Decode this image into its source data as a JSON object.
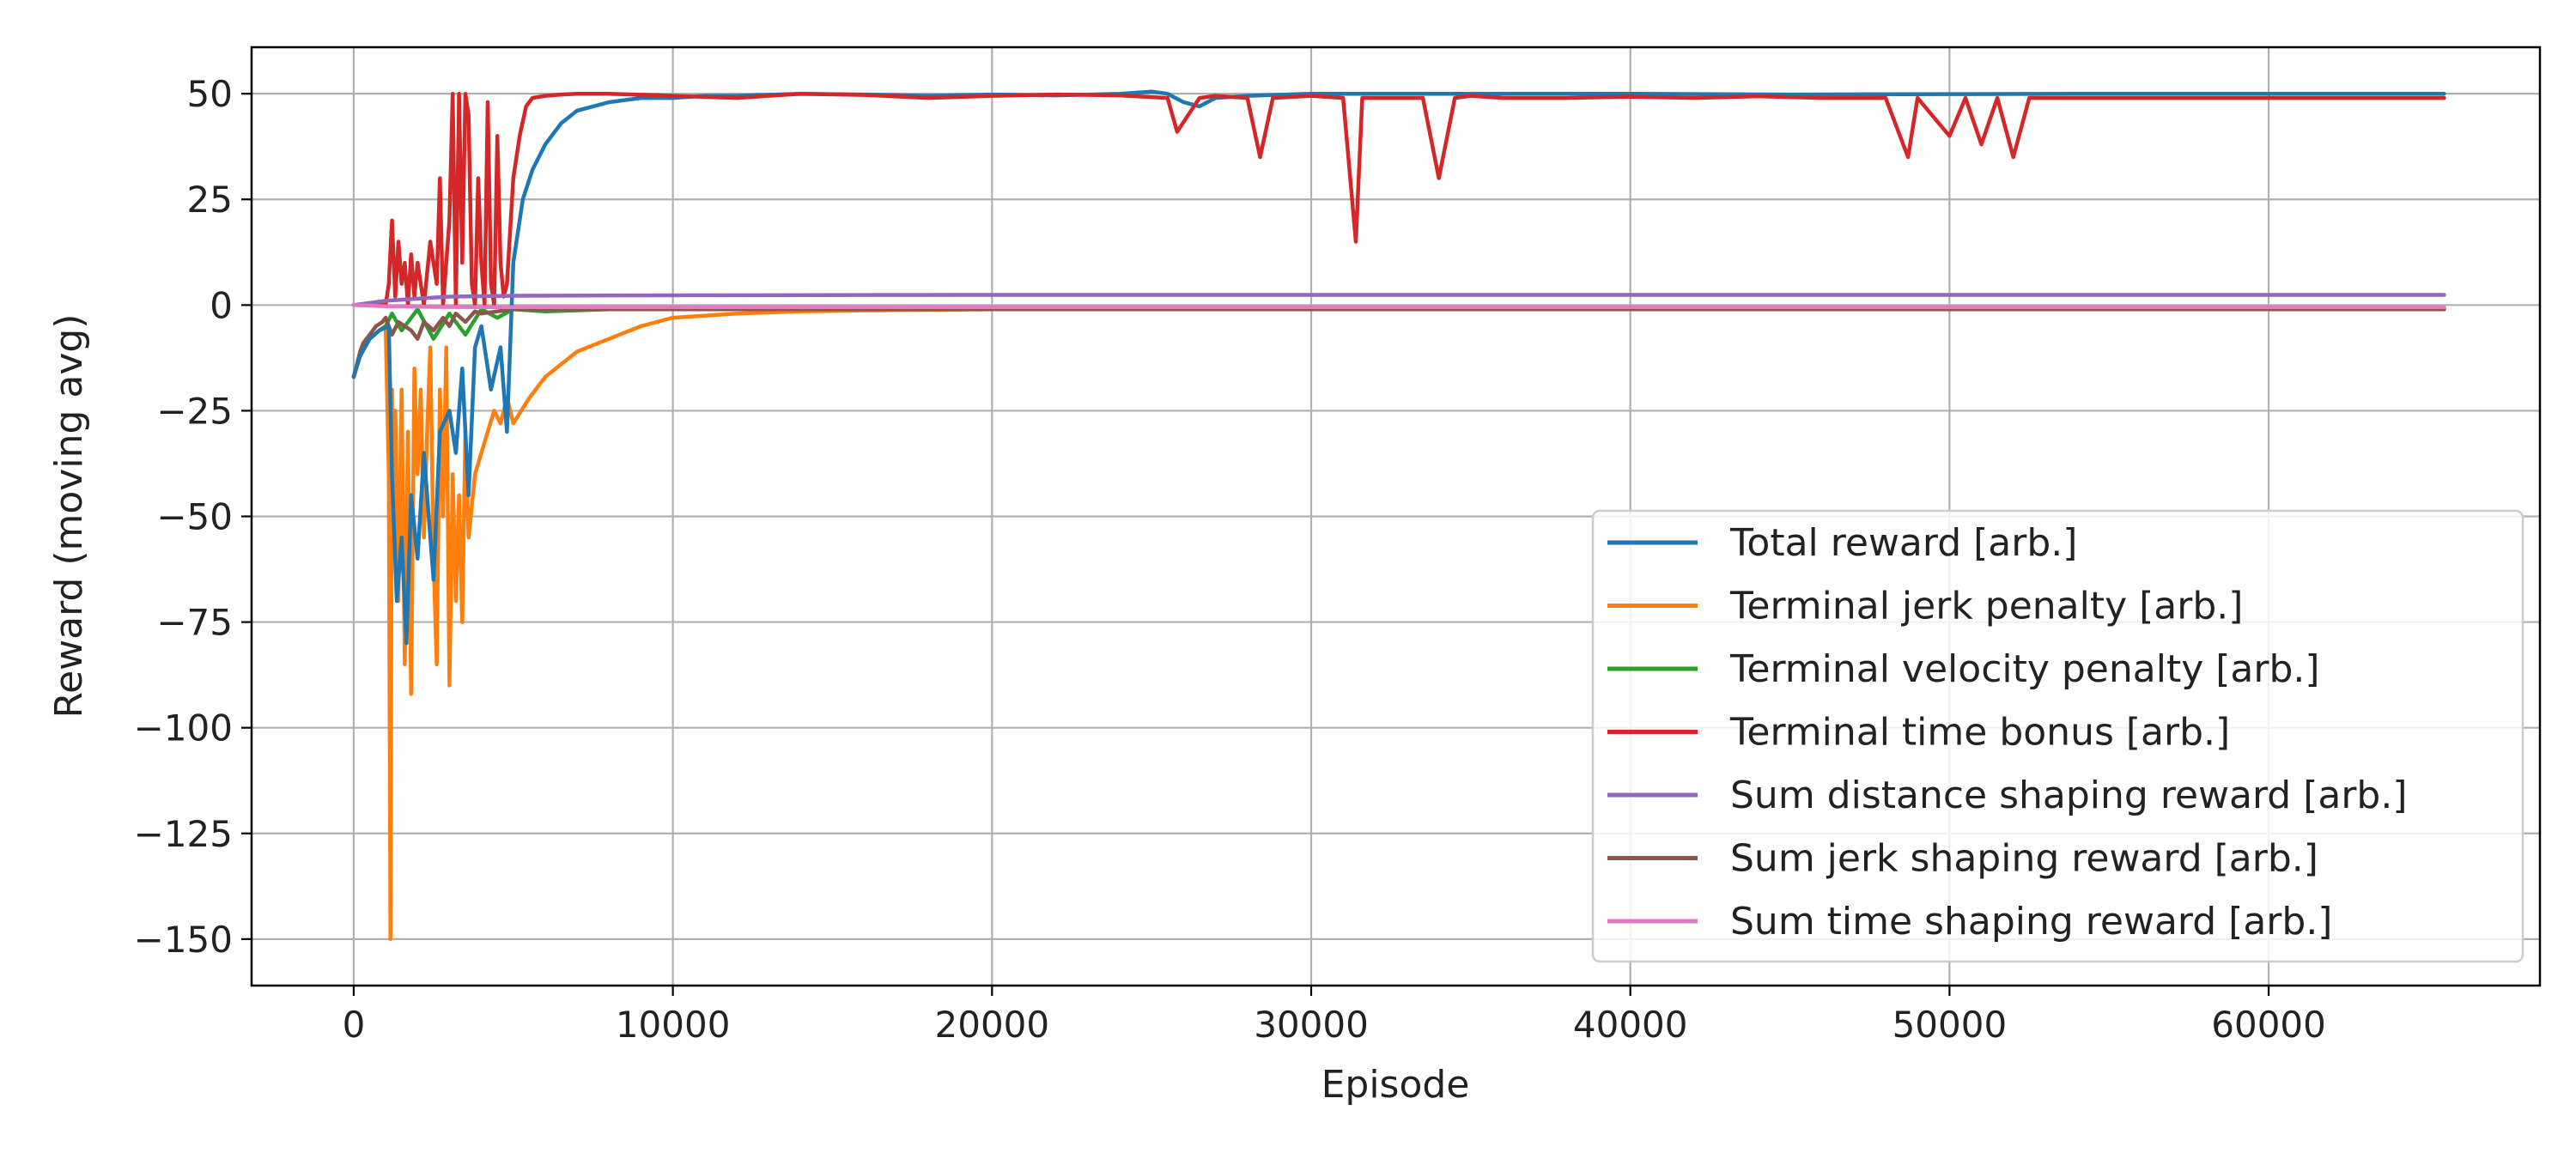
{
  "chart_data": {
    "type": "line",
    "title": "",
    "xlabel": "Episode",
    "ylabel": "Reward (moving avg)",
    "xlim": [
      -3200,
      68500
    ],
    "ylim": [
      -161,
      61
    ],
    "xticks": [
      0,
      10000,
      20000,
      30000,
      40000,
      50000,
      60000
    ],
    "yticks": [
      50,
      25,
      0,
      -25,
      -50,
      -75,
      -100,
      -125,
      -150
    ],
    "xtick_labels": [
      "0",
      "10000",
      "20000",
      "30000",
      "40000",
      "50000",
      "60000"
    ],
    "ytick_labels": [
      "50",
      "25",
      "0",
      "−25",
      "−50",
      "−75",
      "−100",
      "−125",
      "−150"
    ],
    "grid": true,
    "legend_position": "lower-right",
    "series": [
      {
        "name": "Total reward [arb.]",
        "color": "#1f77b4",
        "x": [
          0,
          200,
          500,
          800,
          1100,
          1200,
          1350,
          1500,
          1650,
          1800,
          2000,
          2200,
          2500,
          2700,
          3000,
          3200,
          3400,
          3600,
          3800,
          4000,
          4300,
          4600,
          4800,
          5000,
          5300,
          5600,
          6000,
          6500,
          7000,
          8000,
          9000,
          10000,
          11000,
          12000,
          14000,
          16000,
          18000,
          20000,
          22000,
          24000,
          25000,
          25500,
          26000,
          26500,
          27000,
          28000,
          30000,
          32000,
          35000,
          40000,
          45000,
          50000,
          55000,
          60000,
          65500
        ],
        "y": [
          -17,
          -12,
          -8,
          -6,
          -5,
          -40,
          -70,
          -55,
          -80,
          -45,
          -60,
          -35,
          -65,
          -30,
          -25,
          -35,
          -15,
          -45,
          -10,
          -5,
          -20,
          -10,
          -30,
          10,
          25,
          32,
          38,
          43,
          46,
          48,
          49,
          49,
          49.5,
          49.5,
          50,
          49.8,
          49.5,
          49.8,
          49.6,
          50,
          50.5,
          50,
          48,
          47,
          49,
          49.5,
          50,
          50,
          50,
          50,
          49.8,
          49.9,
          50,
          50,
          50
        ]
      },
      {
        "name": "Terminal jerk penalty [arb.]",
        "color": "#ff7f0e",
        "x": [
          0,
          200,
          500,
          800,
          1000,
          1100,
          1150,
          1200,
          1250,
          1300,
          1400,
          1500,
          1600,
          1700,
          1800,
          1900,
          2000,
          2100,
          2200,
          2300,
          2400,
          2500,
          2600,
          2700,
          2800,
          2900,
          3000,
          3100,
          3200,
          3300,
          3400,
          3500,
          3600,
          3800,
          4000,
          4200,
          4400,
          4600,
          4800,
          5000,
          5500,
          6000,
          6500,
          7000,
          8000,
          9000,
          10000,
          12000,
          14000,
          17000,
          20000,
          30000,
          40000,
          50000,
          65500
        ],
        "y": [
          -17,
          -12,
          -8,
          -6,
          -5,
          -40,
          -150,
          -20,
          -60,
          -25,
          -70,
          -20,
          -85,
          -30,
          -92,
          -15,
          -40,
          -20,
          -55,
          -30,
          -10,
          -60,
          -85,
          -20,
          -50,
          -10,
          -90,
          -40,
          -70,
          -45,
          -75,
          -30,
          -55,
          -40,
          -35,
          -30,
          -25,
          -28,
          -22,
          -28,
          -22,
          -17,
          -14,
          -11,
          -8,
          -5,
          -3,
          -2,
          -1.5,
          -1.2,
          -1,
          -1,
          -1,
          -1,
          -1
        ]
      },
      {
        "name": "Terminal velocity penalty [arb.]",
        "color": "#2ca02c",
        "x": [
          0,
          200,
          500,
          800,
          1000,
          1200,
          1500,
          2000,
          2500,
          3000,
          3500,
          4000,
          4500,
          5000,
          6000,
          8000,
          10000,
          15000,
          20000,
          30000,
          40000,
          50000,
          65500
        ],
        "y": [
          -17,
          -12,
          -8,
          -6,
          -5,
          -2,
          -6,
          -1,
          -8,
          -2,
          -7,
          -1,
          -3,
          -1,
          -1.5,
          -1,
          -1,
          -1,
          -1,
          -0.8,
          -0.8,
          -0.8,
          -0.8
        ]
      },
      {
        "name": "Terminal time bonus [arb.]",
        "color": "#d62728",
        "x": [
          0,
          1000,
          1100,
          1200,
          1300,
          1400,
          1500,
          1600,
          1700,
          1800,
          1900,
          2000,
          2200,
          2400,
          2600,
          2700,
          2800,
          3000,
          3100,
          3200,
          3300,
          3400,
          3500,
          3600,
          3700,
          3800,
          3900,
          4000,
          4100,
          4200,
          4300,
          4400,
          4500,
          4600,
          4700,
          4800,
          5000,
          5200,
          5400,
          5600,
          6000,
          6500,
          7000,
          8000,
          10000,
          12000,
          14000,
          16000,
          18000,
          20000,
          22000,
          24000,
          25500,
          25800,
          26500,
          27000,
          28000,
          28400,
          28800,
          30000,
          31000,
          31400,
          31600,
          32500,
          33500,
          34000,
          34500,
          35000,
          36000,
          38000,
          40000,
          42000,
          44000,
          46000,
          47000,
          48000,
          48700,
          49000,
          50000,
          50500,
          51000,
          51500,
          52000,
          52500,
          55000,
          58000,
          60000,
          62000,
          65500
        ],
        "y": [
          0,
          0,
          5,
          20,
          2,
          15,
          5,
          10,
          0,
          12,
          2,
          10,
          0,
          15,
          5,
          30,
          0,
          20,
          50,
          0,
          50,
          10,
          50,
          45,
          5,
          0,
          30,
          10,
          0,
          48,
          5,
          0,
          40,
          10,
          2,
          5,
          30,
          40,
          47,
          49,
          49.5,
          49.8,
          50,
          50,
          49.5,
          49,
          50,
          49.7,
          49,
          49.5,
          49.8,
          49.6,
          49,
          41,
          49,
          49.5,
          49,
          35,
          49,
          49.5,
          49,
          15,
          49,
          49,
          49,
          30,
          49,
          49.5,
          49,
          49,
          49.3,
          49,
          49.4,
          49,
          49,
          49,
          35,
          49,
          40,
          49,
          38,
          49,
          35,
          49,
          49,
          49,
          49,
          49,
          49
        ]
      },
      {
        "name": "Sum distance shaping reward [arb.]",
        "color": "#9467bd",
        "x": [
          0,
          1000,
          2000,
          3000,
          5000,
          10000,
          20000,
          30000,
          40000,
          50000,
          60000,
          65500
        ],
        "y": [
          0,
          1,
          1.5,
          2,
          2.2,
          2.3,
          2.4,
          2.4,
          2.4,
          2.4,
          2.4,
          2.4
        ]
      },
      {
        "name": "Sum jerk shaping reward [arb.]",
        "color": "#8c564b",
        "x": [
          0,
          100,
          200,
          300,
          500,
          700,
          900,
          1000,
          1200,
          1400,
          1600,
          1800,
          2000,
          2200,
          2500,
          2800,
          3000,
          3200,
          3500,
          3800,
          4000,
          4500,
          5000,
          6000,
          8000,
          10000,
          20000,
          40000,
          65500
        ],
        "y": [
          -17,
          -14,
          -11,
          -9,
          -7,
          -5,
          -4,
          -3,
          -7,
          -4,
          -5,
          -6,
          -8,
          -4,
          -6,
          -3,
          -5,
          -2,
          -4,
          -1.5,
          -2,
          -1.5,
          -1,
          -1,
          -1,
          -1,
          -1,
          -1,
          -1
        ]
      },
      {
        "name": "Sum time shaping reward [arb.]",
        "color": "#e377c2",
        "x": [
          0,
          1000,
          2000,
          4000,
          5000,
          10000,
          20000,
          30000,
          40000,
          50000,
          60000,
          65500
        ],
        "y": [
          0,
          -0.3,
          -0.4,
          -0.5,
          -0.5,
          -0.5,
          -0.5,
          -0.5,
          -0.5,
          -0.5,
          -0.5,
          -0.5
        ]
      }
    ]
  }
}
